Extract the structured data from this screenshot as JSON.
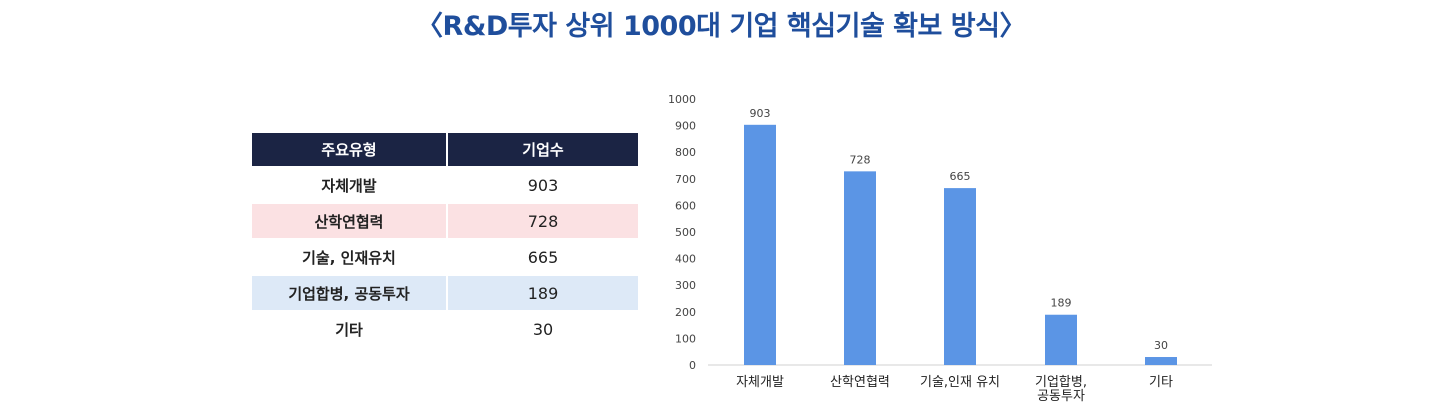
{
  "title": "〈R&D투자 상위 1000대 기업 핵심기술 확보 방식〉",
  "table": {
    "headers": [
      "주요유형",
      "기업수"
    ],
    "rows": [
      {
        "label": "자체개발",
        "value": "903",
        "bg": "#ffffff"
      },
      {
        "label": "산학연협력",
        "value": "728",
        "bg": "#fbe1e3"
      },
      {
        "label": "기술, 인재유치",
        "value": "665",
        "bg": "#ffffff"
      },
      {
        "label": "기업합병, 공동투자",
        "value": "189",
        "bg": "#dde9f7"
      },
      {
        "label": "기타",
        "value": "30",
        "bg": "#ffffff"
      }
    ]
  },
  "chart_data": {
    "type": "bar",
    "categories": [
      "자체개발",
      "산학연협력",
      "기술,인재 유치",
      "기업합병,\n공동투자",
      "기타"
    ],
    "values": [
      903,
      728,
      665,
      189,
      30
    ],
    "data_labels": [
      "903",
      "728",
      "665",
      "189",
      "30"
    ],
    "ylim": [
      0,
      1000
    ],
    "yticks": [
      0,
      100,
      200,
      300,
      400,
      500,
      600,
      700,
      800,
      900,
      1000
    ],
    "grid": false,
    "bar_color": "#5b95e5"
  }
}
